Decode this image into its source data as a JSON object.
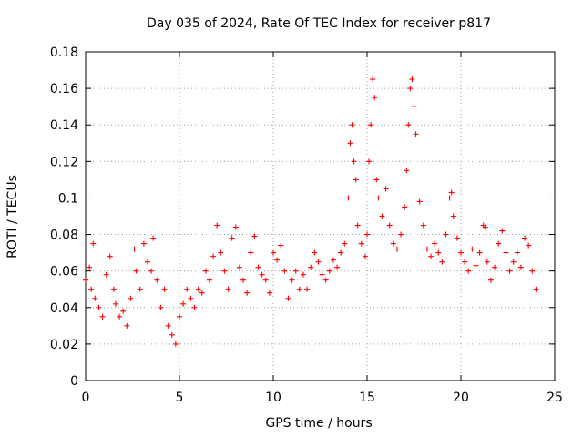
{
  "chart_data": {
    "type": "scatter",
    "title": "Day 035 of 2024, Rate Of TEC Index for receiver p817",
    "xlabel": "GPS time / hours",
    "ylabel": "ROTI / TECUs",
    "xlim": [
      0,
      25
    ],
    "ylim": [
      0,
      0.18
    ],
    "xticks": [
      "0",
      "5",
      "10",
      "15",
      "20",
      "25"
    ],
    "yticks": [
      "0",
      "0.02",
      "0.04",
      "0.06",
      "0.08",
      "0.1",
      "0.12",
      "0.14",
      "0.16",
      "0.18"
    ],
    "grid": true,
    "marker": "plus",
    "color": "#ff0000",
    "series": [
      {
        "x": [
          0.0,
          0.2,
          0.3,
          0.4,
          0.5,
          0.7,
          0.9,
          1.1,
          1.3,
          1.5,
          1.6,
          1.8,
          2.0,
          2.2,
          2.4,
          2.6,
          2.7,
          2.9,
          3.1,
          3.3,
          3.5,
          3.6,
          3.8,
          4.0,
          4.2,
          4.4,
          4.6,
          4.8,
          5.0,
          5.2,
          5.4,
          5.6,
          5.8,
          6.0,
          6.2,
          6.4,
          6.6,
          6.8,
          7.0,
          7.2,
          7.4,
          7.6,
          7.8,
          8.0,
          8.2,
          8.4,
          8.6,
          8.8,
          9.0,
          9.2,
          9.4,
          9.6,
          9.8,
          10.0,
          10.2,
          10.4,
          10.6,
          10.8,
          11.0,
          11.2,
          11.4,
          11.6,
          11.8,
          12.0,
          12.2,
          12.4,
          12.6,
          12.8,
          13.0,
          13.2,
          13.4,
          13.6,
          13.8,
          14.0,
          14.1,
          14.2,
          14.3,
          14.4,
          14.5,
          14.7,
          14.9,
          15.0,
          15.1,
          15.2,
          15.3,
          15.4,
          15.5,
          15.6,
          15.8,
          16.0,
          16.2,
          16.4,
          16.6,
          16.8,
          17.0,
          17.1,
          17.2,
          17.3,
          17.4,
          17.5,
          17.6,
          17.8,
          18.0,
          18.2,
          18.4,
          18.6,
          18.8,
          19.0,
          19.2,
          19.4,
          19.5,
          19.6,
          19.8,
          20.0,
          20.2,
          20.4,
          20.6,
          20.8,
          21.0,
          21.2,
          21.3,
          21.4,
          21.6,
          21.8,
          22.0,
          22.2,
          22.4,
          22.6,
          22.8,
          23.0,
          23.2,
          23.4,
          23.6,
          23.8,
          24.0
        ],
        "y": [
          0.055,
          0.062,
          0.05,
          0.075,
          0.045,
          0.04,
          0.035,
          0.058,
          0.068,
          0.05,
          0.042,
          0.035,
          0.038,
          0.03,
          0.045,
          0.072,
          0.06,
          0.05,
          0.075,
          0.065,
          0.06,
          0.078,
          0.055,
          0.04,
          0.05,
          0.03,
          0.025,
          0.02,
          0.035,
          0.042,
          0.05,
          0.045,
          0.04,
          0.05,
          0.048,
          0.06,
          0.055,
          0.068,
          0.085,
          0.07,
          0.06,
          0.05,
          0.078,
          0.084,
          0.062,
          0.055,
          0.048,
          0.07,
          0.079,
          0.062,
          0.058,
          0.055,
          0.048,
          0.07,
          0.066,
          0.074,
          0.06,
          0.045,
          0.055,
          0.06,
          0.05,
          0.058,
          0.05,
          0.062,
          0.07,
          0.065,
          0.058,
          0.055,
          0.06,
          0.066,
          0.062,
          0.07,
          0.075,
          0.1,
          0.13,
          0.14,
          0.12,
          0.11,
          0.085,
          0.075,
          0.068,
          0.08,
          0.12,
          0.14,
          0.165,
          0.155,
          0.11,
          0.1,
          0.09,
          0.105,
          0.085,
          0.075,
          0.072,
          0.08,
          0.095,
          0.115,
          0.14,
          0.16,
          0.165,
          0.15,
          0.135,
          0.098,
          0.085,
          0.072,
          0.068,
          0.075,
          0.07,
          0.065,
          0.08,
          0.1,
          0.103,
          0.09,
          0.078,
          0.07,
          0.065,
          0.06,
          0.072,
          0.063,
          0.07,
          0.085,
          0.084,
          0.065,
          0.055,
          0.062,
          0.075,
          0.082,
          0.07,
          0.06,
          0.065,
          0.07,
          0.062,
          0.078,
          0.074,
          0.06,
          0.05
        ]
      }
    ]
  }
}
